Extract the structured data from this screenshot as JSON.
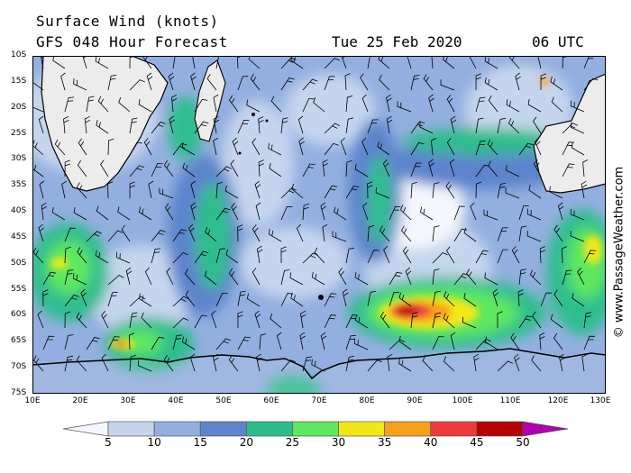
{
  "title": "Surface Wind (knots)",
  "subtitle": "GFS 048 Hour Forecast",
  "date": "Tue 25 Feb 2020",
  "time": "06 UTC",
  "watermark": "© www.PassageWeather.com",
  "lat_labels": [
    "10S",
    "15S",
    "20S",
    "25S",
    "30S",
    "35S",
    "40S",
    "45S",
    "50S",
    "55S",
    "60S",
    "65S",
    "70S",
    "75S"
  ],
  "lon_labels": [
    "10E",
    "20E",
    "30E",
    "40E",
    "50E",
    "60E",
    "70E",
    "80E",
    "90E",
    "100E",
    "110E",
    "120E",
    "130E"
  ],
  "legend": {
    "ticks": [
      "5",
      "10",
      "15",
      "20",
      "25",
      "30",
      "35",
      "40",
      "45",
      "50"
    ],
    "colors": [
      "#f4f7fd",
      "#c6d5ee",
      "#93afe0",
      "#5d84cc",
      "#2dbd8e",
      "#5fe85f",
      "#f3e817",
      "#f6a11a",
      "#ee3a3a",
      "#b50000",
      "#b000b0"
    ]
  },
  "colors": {
    "land": "#ececec",
    "coast": "#000000"
  }
}
